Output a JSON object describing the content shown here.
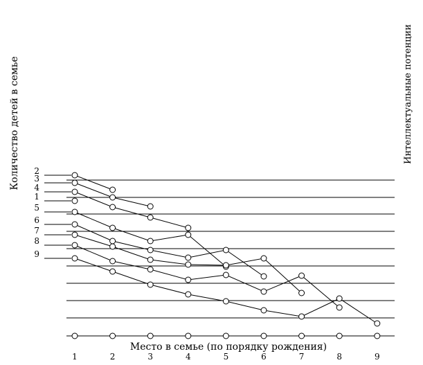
{
  "chart_data": {
    "type": "line",
    "title": "",
    "xlabel": "Место в семье (по порядку рождения)",
    "ylabel_left": "Количество детей в семье",
    "ylabel_right": "Интеллектуальные потенции",
    "x_ticks": [
      "1",
      "2",
      "3",
      "4",
      "5",
      "6",
      "7",
      "8",
      "9"
    ],
    "xlim": [
      1,
      9
    ],
    "baseline": [
      {
        "x": 1,
        "y": 0
      },
      {
        "x": 2,
        "y": 0
      },
      {
        "x": 3,
        "y": 0
      },
      {
        "x": 4,
        "y": 0
      },
      {
        "x": 5,
        "y": 0
      },
      {
        "x": 6,
        "y": 0
      },
      {
        "x": 7,
        "y": 0
      },
      {
        "x": 8,
        "y": 0
      },
      {
        "x": 9,
        "y": 0
      }
    ],
    "series": [
      {
        "name": "1",
        "points": [
          {
            "x": 1,
            "y": 195
          }
        ]
      },
      {
        "name": "2",
        "points": [
          {
            "x": 1,
            "y": 232
          },
          {
            "x": 2,
            "y": 211
          }
        ]
      },
      {
        "name": "3",
        "points": [
          {
            "x": 1,
            "y": 221
          },
          {
            "x": 2,
            "y": 200
          },
          {
            "x": 3,
            "y": 187
          }
        ]
      },
      {
        "name": "4",
        "points": [
          {
            "x": 1,
            "y": 208
          },
          {
            "x": 2,
            "y": 186
          },
          {
            "x": 3,
            "y": 171
          },
          {
            "x": 4,
            "y": 156
          }
        ]
      },
      {
        "name": "5",
        "points": [
          {
            "x": 1,
            "y": 179
          },
          {
            "x": 2,
            "y": 156
          },
          {
            "x": 3,
            "y": 137
          },
          {
            "x": 4,
            "y": 146
          },
          {
            "x": 5,
            "y": 100
          }
        ]
      },
      {
        "name": "6",
        "points": [
          {
            "x": 1,
            "y": 161
          },
          {
            "x": 2,
            "y": 137
          },
          {
            "x": 3,
            "y": 124
          },
          {
            "x": 4,
            "y": 113
          },
          {
            "x": 5,
            "y": 124
          },
          {
            "x": 6,
            "y": 86
          }
        ]
      },
      {
        "name": "7",
        "points": [
          {
            "x": 1,
            "y": 146
          },
          {
            "x": 2,
            "y": 129
          },
          {
            "x": 3,
            "y": 110
          },
          {
            "x": 4,
            "y": 103
          },
          {
            "x": 5,
            "y": 102
          },
          {
            "x": 6,
            "y": 112
          },
          {
            "x": 7,
            "y": 62
          }
        ]
      },
      {
        "name": "8",
        "points": [
          {
            "x": 1,
            "y": 131
          },
          {
            "x": 2,
            "y": 108
          },
          {
            "x": 3,
            "y": 96
          },
          {
            "x": 4,
            "y": 81
          },
          {
            "x": 5,
            "y": 88
          },
          {
            "x": 6,
            "y": 64
          },
          {
            "x": 7,
            "y": 87
          },
          {
            "x": 8,
            "y": 41
          }
        ]
      },
      {
        "name": "9",
        "points": [
          {
            "x": 1,
            "y": 112
          },
          {
            "x": 2,
            "y": 93
          },
          {
            "x": 3,
            "y": 74
          },
          {
            "x": 4,
            "y": 60
          },
          {
            "x": 5,
            "y": 50
          },
          {
            "x": 6,
            "y": 37
          },
          {
            "x": 7,
            "y": 28
          },
          {
            "x": 8,
            "y": 54
          },
          {
            "x": 9,
            "y": 18
          }
        ]
      }
    ],
    "grid": true,
    "legend": "left labels"
  }
}
